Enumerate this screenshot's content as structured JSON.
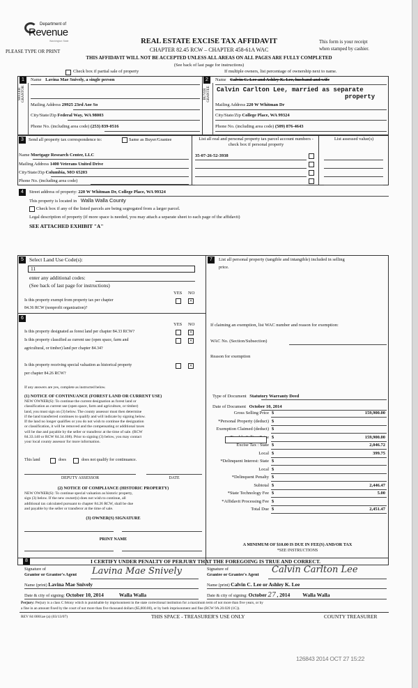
{
  "header": {
    "logo_line1": "Department of",
    "logo_line2": "Revenue",
    "logo_line3": "Washington State",
    "please": "PLEASE TYPE OR PRINT",
    "title": "REAL ESTATE EXCISE TAX AFFIDAVIT",
    "chapter": "CHAPTER 82.45 RCW – CHAPTER 458-61A WAC",
    "warning": "THIS AFFIDAVIT WILL NOT BE ACCEPTED UNLESS ALL AREAS ON ALL PAGES ARE FULLY COMPLETED",
    "see_back": "(See back of last page for instructions)",
    "receipt1": "This form is your receipt",
    "receipt2": "when stamped by cashier.",
    "partial_sale": "Check box if partial sale of property",
    "multiple_owners": "If multiple owners, list percentage of ownership next to name."
  },
  "seller": {
    "num": "1",
    "side_label": "SELLER GRANTOR",
    "name_label": "Name",
    "name": "Lavina Mae Snively, a single person",
    "mail_label": "Mailing Address",
    "mail": "29925 23rd Aoe So",
    "city_label": "City/State/Zip",
    "city": "Federal Way, WA  98003",
    "phone_label": "Phone No. (including area code)",
    "phone": "(253) 839-0516"
  },
  "buyer": {
    "num": "2",
    "side_label": "BUYER GRANTEE",
    "name_label": "Name",
    "name_struck": "Calvin C. Lee and Ashley K. Lee, husband and wife",
    "name_typed1": "Calvin Carlton Lee, married as separate",
    "name_typed2": "property",
    "mail_label": "Mailing Address",
    "mail": "220 W Whitman Dr",
    "city_label": "City/State/Zip",
    "city": "College Place, WA  99324",
    "phone_label": "Phone No. (including area code)",
    "phone": "(509) 876-4643"
  },
  "tax_corr": {
    "num": "3",
    "label": "Send all property tax correspondence to:",
    "same_label": "Same as Buyer/Grantee",
    "name_label": "Name",
    "name": "Mortgage Research Center, LLC",
    "mail_label": "Mailing Address",
    "mail": "1400 Veterans United Drive",
    "city_label": "City/State/Zip",
    "city": "Columbia, MO  65203",
    "phone_label": "Phone No. (including area code)",
    "parcel_header": "List all real and personal property tax parcel account numbers - check box if personal property",
    "assessed_header": "List assessed value(s)",
    "parcels": [
      "35-07-26-52-3938",
      "",
      "",
      ""
    ]
  },
  "property": {
    "num": "4",
    "street_label": "Street address of property:",
    "street": "220 W Whitman Dr, College Place, WA  99324",
    "located_label": "This property is located in",
    "county": "Walla Walla County",
    "segregated": "Check box if any of the listed parcels are being segregated from a larger parcel.",
    "legal_label": "Legal description of property (if more space is needed, you may attach a separate sheet to each page of the affidavit)",
    "legal": "SEE ATTACHED EXHIBIT \"A\""
  },
  "land_use": {
    "num": "5",
    "label": "Select Land Use Code(s):",
    "code": "11",
    "additional": "enter any additional codes:",
    "see_back": "(See back of last page for instructions)",
    "yes": "YES",
    "no": "NO",
    "q_exempt": "Is this property exempt from property tax per chapter",
    "q_exempt2": "84.36 RCW (nonprofit organization)?"
  },
  "sec6": {
    "num": "6",
    "yes": "YES",
    "no": "NO",
    "q1": "Is this property designated as forest land per chapter 84.33 RCW?",
    "q2a": "Is this property classified as current use (open space, farm and",
    "q2b": "agricultural, or timber) land per chapter 84.34?",
    "q3a": "Is this property receiving special valuation as historical property",
    "q3b": "per chapter 84.26 RCW?",
    "if_yes": "If any answers are yes, complete as instructed below.",
    "n1_title": "(1) NOTICE OF CONTINUANCE (FOREST LAND OR CURRENT USE)",
    "n1_lines": [
      "NEW OWNER(S): To continue the current designation as forest land or",
      "classification as current use (open space, farm and agriculture, or timber)",
      "land, you must sign on (3) below. The county assessor must then determine",
      "if the land transferred continues to qualify and will indicate by signing below.",
      "If the land no longer qualifies or you do not wish to continue the designation",
      "or classification, it will be removed and the compensating or additional taxes",
      "will be due and payable by the seller or transferor at the time of sale. (RCW",
      "84.33.140 or RCW 84.34.108). Prior to signing (3) below, you may contact",
      "your local county assessor for more information."
    ],
    "this_land": "This land",
    "does": "does",
    "does_not": "does not  qualify for continuance.",
    "deputy": "DEPUTY ASSESSOR",
    "date": "DATE",
    "n2_title": "(2) NOTICE OF COMPLIANCE (HISTORIC PROPERTY)",
    "n2_lines": [
      "NEW OWNER(S): To continue special valuation as historic property,",
      "sign (3) below. If the new owner(s) does not wish to continue, all",
      "additional tax calculated pursuant to chapter 84.26 RCW, shall be due",
      "and payable by the seller or transferor at the time of sale."
    ],
    "n3_title": "(3) OWNER(S) SIGNATURE",
    "print_name": "PRINT NAME"
  },
  "sec7": {
    "num": "7",
    "label1": "List all personal property (tangible and intangible) included in selling",
    "label2": "price.",
    "exempt_label": "If claiming an exemption, list WAC number and reason for exemption:",
    "wac_label": "WAC No. (Section/Subsection)",
    "reason_label": "Reason for exemption",
    "doc_type_label": "Type of Document",
    "doc_type": "Statutory Warranty Deed",
    "doc_date_label": "Date of Document",
    "doc_date": "October 10, 2014",
    "rows": [
      {
        "label": "Gross Selling Price",
        "value": "159,900.00"
      },
      {
        "label": "*Personal Property (deduct)",
        "value": ""
      },
      {
        "label": "Exemption Claimed (deduct)",
        "value": ""
      },
      {
        "label": "Taxable Selling Price",
        "value": "159,900.00"
      },
      {
        "label": "Excise Tax : State",
        "value": "2,046.72"
      },
      {
        "label": "Local",
        "value": "399.75"
      },
      {
        "label": "*Delinquent Interest:  State",
        "value": ""
      },
      {
        "label": "Local",
        "value": ""
      },
      {
        "label": "*Delinquent Penalty",
        "value": ""
      },
      {
        "label": "Subtotal",
        "value": "2,446.47"
      },
      {
        "label": "*State Technology Fee",
        "value": "5.00"
      },
      {
        "label": "*Affidavit Processing Fee",
        "value": ""
      },
      {
        "label": "Total Due",
        "value": "2,451.47"
      }
    ],
    "currency": "$",
    "minimum": "A MINIMUM OF $10.00 IS DUE IN FEE(S) AND/OR TAX",
    "see_instr": "*SEE INSTRUCTIONS"
  },
  "sec8": {
    "num": "8",
    "certify": "I CERTIFY UNDER PENALTY OF PERJURY THAT THE FOREGOING IS TRUE AND CORRECT.",
    "sig_of": "Signature of",
    "grantor_agent": "Grantor or Grantor's Agent",
    "grantee_agent": "Grantee or Grantee's Agent",
    "grantor_sig": "Lavina Mae Snively",
    "grantee_sig": "Calvin Carlton Lee",
    "name_print": "Name (print)",
    "grantor_name": "Lavina Mae Snively",
    "grantee_name": "Calvin C. Lee or Ashley K. Lee",
    "date_city": "Date & city of signing:",
    "grantor_date": "October 10, 2014",
    "grantor_city": "Walla Walla",
    "grantee_date_a": "October",
    "grantee_day": "27",
    "grantee_date_b": ", 2014",
    "grantee_city": "Walla Walla"
  },
  "footer": {
    "perjury_bold": "Perjury:",
    "perjury1": "Perjury is a class C felony which is punishable by imprisonment in the state correctional institution for a maximum term of not more than five years, or by",
    "perjury2": "a fine in an amount fixed by the court of not more than five thousand dollars ($5,000.00), or by both imprisonment and fine (RCW 9A.20.020 (1C)).",
    "rev": "REV 84 0001ae (a) (03/13/07)",
    "treasurer_space": "THIS SPACE - TREASURER'S USE ONLY",
    "county_treasurer": "COUNTY TREASURER",
    "stamp": "126843 2014 OCT 27 15:22"
  }
}
